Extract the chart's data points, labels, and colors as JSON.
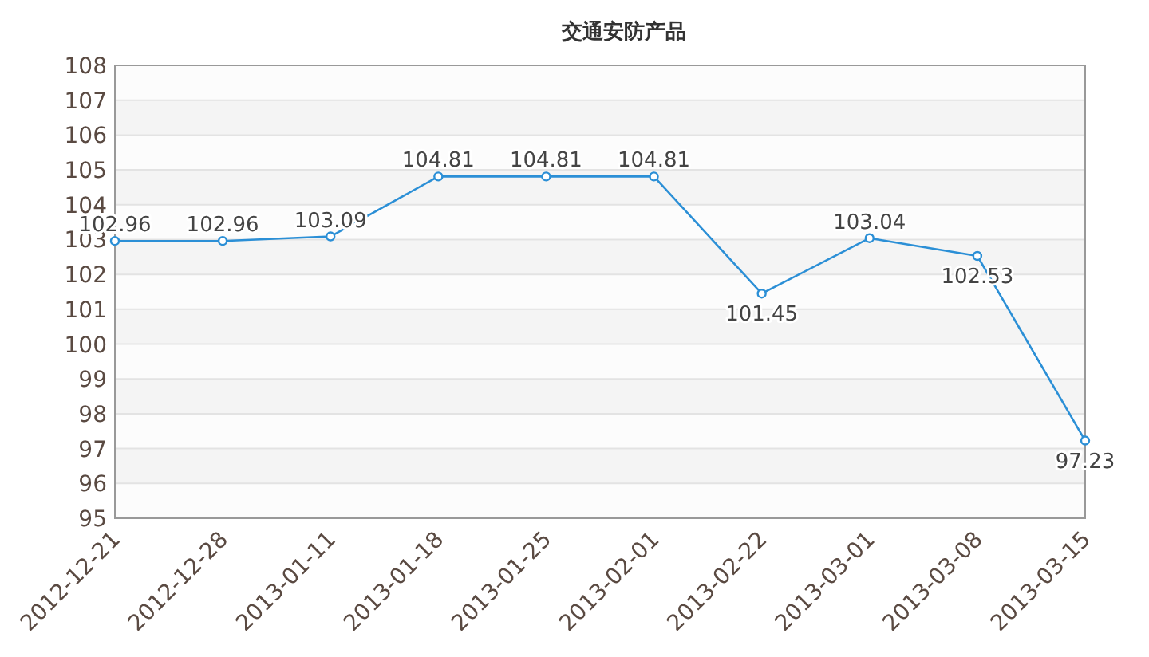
{
  "chart_data": {
    "type": "line",
    "title": "交通安防产品",
    "categories": [
      "2012-12-21",
      "2012-12-28",
      "2013-01-11",
      "2013-01-18",
      "2013-01-25",
      "2013-02-01",
      "2013-02-22",
      "2013-03-01",
      "2013-03-08",
      "2013-03-15"
    ],
    "series": [
      {
        "color": "#2b8fd6",
        "values": [
          102.96,
          102.96,
          103.09,
          104.81,
          104.81,
          104.81,
          101.45,
          103.04,
          102.53,
          97.23
        ]
      }
    ],
    "ylim": [
      95,
      108
    ],
    "yticks": [
      95,
      96,
      97,
      98,
      99,
      100,
      101,
      102,
      103,
      104,
      105,
      106,
      107,
      108
    ],
    "grid": "y",
    "marker": "circle",
    "data_labels": true
  }
}
